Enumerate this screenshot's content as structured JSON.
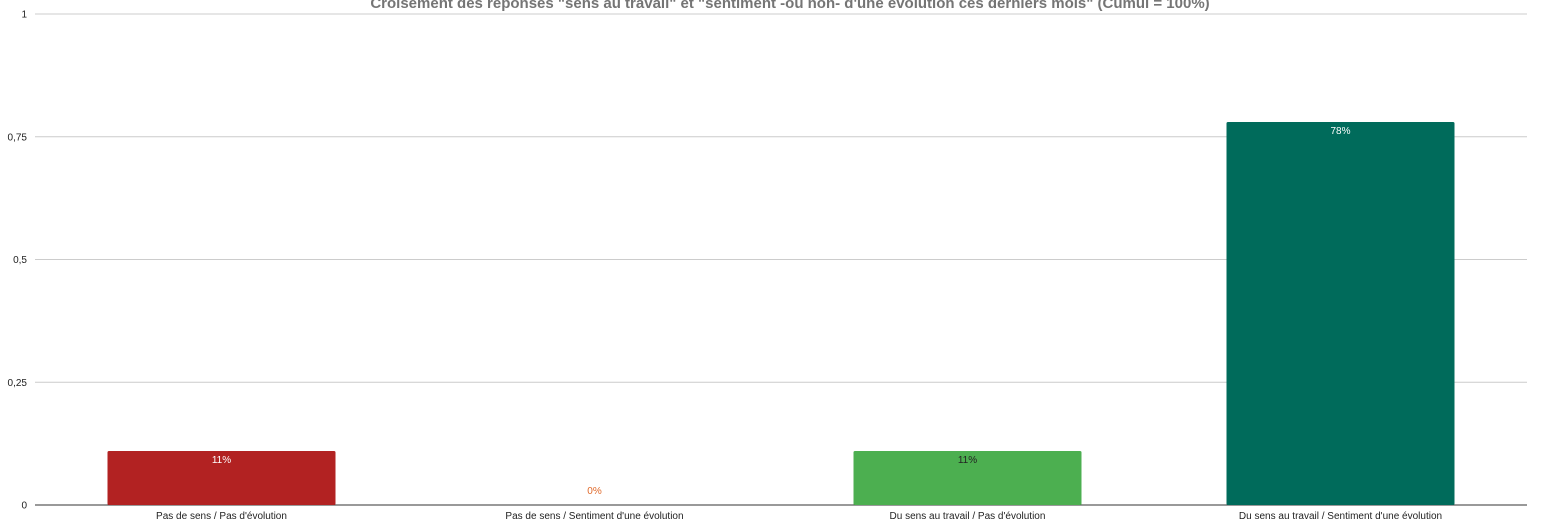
{
  "chart_data": {
    "type": "bar",
    "title": "Croisement des réponses \"sens au travail\" et \"sentiment -ou non- d'une évolution ces derniers mois\" (Cumul = 100%)",
    "xlabel": "",
    "ylabel": "",
    "categories": [
      "Pas de sens / Pas d'évolution",
      "Pas de sens / Sentiment d'une évolution",
      "Du sens au travail  / Pas d'évolution",
      "Du sens au travail / Sentiment d'une évolution"
    ],
    "values": [
      0.11,
      0,
      0.11,
      0.78
    ],
    "data_labels": [
      "11%",
      "0%",
      "11%",
      "78%"
    ],
    "bar_colors": [
      "#b22222",
      "#e0692a",
      "#4caf50",
      "#006b5b"
    ],
    "label_colors": [
      "#ffffff",
      "#e0692a",
      "#222222",
      "#ffffff"
    ],
    "ylim": [
      0,
      1
    ],
    "yticks": [
      0,
      0.25,
      0.5,
      0.75,
      1
    ],
    "ytick_labels": [
      "0",
      "0,25",
      "0,5",
      "0,75",
      "1"
    ],
    "grid": true,
    "legend": "none"
  }
}
